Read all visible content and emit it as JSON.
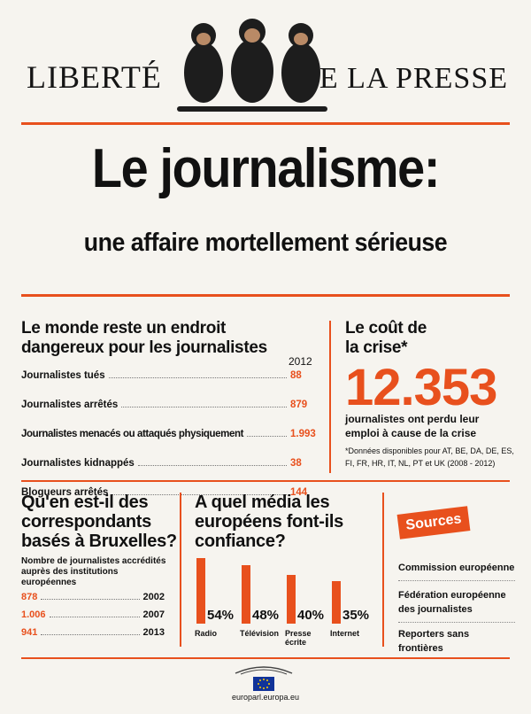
{
  "masthead": {
    "left": "LIBERTÉ",
    "right": "DE LA PRESSE"
  },
  "headline": "Le journalisme:",
  "subheadline": "une affaire mortellement sérieuse",
  "dangers": {
    "title": "Le monde reste un endroit dangereux pour les journalistes",
    "year": "2012",
    "rows": [
      {
        "label": "Journalistes tués",
        "value": "88"
      },
      {
        "label": "Journalistes arrêtés",
        "value": "879"
      },
      {
        "label": "Journalistes menacés ou attaqués physiquement",
        "value": "1.993"
      },
      {
        "label": "Journalistes kidnappés",
        "value": "38"
      },
      {
        "label": "Blogueurs arrêtés",
        "value": "144"
      }
    ]
  },
  "cost": {
    "title": "Le coût de la crise*",
    "number": "12.353",
    "text": "journalistes ont perdu leur emploi à cause de la crise",
    "note": "*Données disponibles pour AT, BE, DA, DE, ES, FI, FR, HR, IT, NL, PT et UK (2008 - 2012)"
  },
  "correspondents": {
    "title": "Qu'en est-il des correspondants basés à Bruxelles?",
    "subtitle": "Nombre de journalistes accrédités auprès des institutions européennes",
    "rows": [
      {
        "value": "878",
        "year": "2002"
      },
      {
        "value": "1.006",
        "year": "2007"
      },
      {
        "value": "941",
        "year": "2013"
      }
    ]
  },
  "media": {
    "title": "A quel média les européens font-ils confiance?",
    "items": [
      {
        "label": "Radio",
        "percent": 54,
        "percent_text": "54%"
      },
      {
        "label": "Télévision",
        "percent": 48,
        "percent_text": "48%"
      },
      {
        "label": "Presse écrite",
        "percent": 40,
        "percent_text": "40%"
      },
      {
        "label": "Internet",
        "percent": 35,
        "percent_text": "35%"
      }
    ]
  },
  "sources": {
    "badge": "Sources",
    "items": [
      "Commission européenne",
      "Fédération européenne des journalistes",
      "Reporters sans frontières"
    ]
  },
  "footer": {
    "url": "europarl.europa.eu"
  },
  "colors": {
    "accent": "#e8501d",
    "text": "#111111",
    "background": "#f6f4ef"
  }
}
